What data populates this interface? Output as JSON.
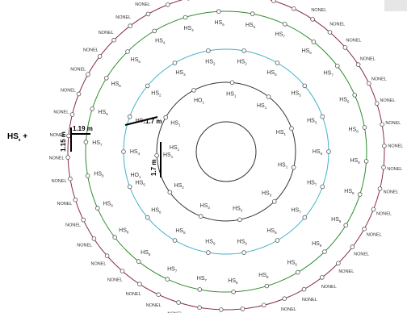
{
  "side_label": {
    "text": "HS",
    "sub": "9",
    "suffix": " +"
  },
  "dimensions": {
    "spacing_outer": "1.15 m",
    "burden_outer": "1.19 m",
    "spacing_inner": "1.7 m",
    "burden_inner": "1.7 m"
  },
  "colors": {
    "outer_ring": "#8b2e3f",
    "green_ring": "#2e8b2e",
    "cyan_ring": "#40b0c8",
    "inner_ring": "#333333",
    "hole": "#555555"
  },
  "rings": {
    "outer": {
      "count": 46,
      "label": "NONEL",
      "label_variants": {
        "5": "NONEL",
        "20": "NONEL",
        "21": "NONEL",
        "40": "NONEL"
      }
    },
    "green": {
      "count": 26,
      "label": "HS",
      "subs": [
        "6",
        "5",
        "7",
        "6",
        "7",
        "6",
        "8",
        "8",
        "8",
        "9",
        "9",
        "9",
        "8",
        "8",
        "7",
        "7",
        "8",
        "8",
        "8",
        "8",
        "7",
        "6",
        "6",
        "6",
        "4",
        "4"
      ]
    },
    "cyan": {
      "count": 18,
      "label": "HS",
      "subs": [
        "2",
        "5",
        "5",
        "3",
        "6",
        "7",
        "7",
        "8",
        "9",
        "9",
        "8",
        "6",
        "6",
        "4",
        "4",
        "2",
        "3",
        "2"
      ]
    },
    "inner": {
      "count": 11,
      "label": "HS",
      "subs": [
        "1",
        "1",
        "1",
        "1",
        "3",
        "3",
        "3",
        "2",
        "1",
        "1",
        "0"
      ],
      "hs0_label": "HO"
    }
  },
  "left_column": [
    {
      "text": "HO",
      "sub": "1"
    },
    {
      "text": "HS",
      "sub": "1"
    }
  ]
}
